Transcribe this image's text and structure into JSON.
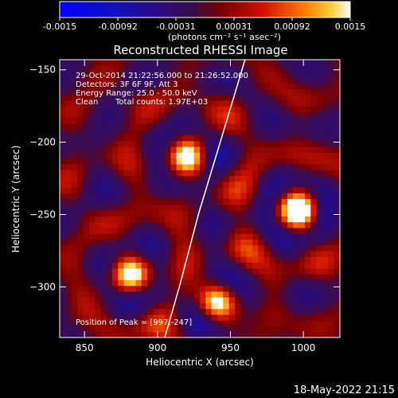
{
  "colorbar": {
    "ticks": [
      "-0.0015",
      "-0.00092",
      "-0.00031",
      "0.00031",
      "0.00092",
      "0.0015"
    ],
    "unit_label": "(photons cm⁻² s⁻¹ asec⁻²)"
  },
  "chart_data": {
    "type": "heatmap",
    "title": "Reconstructed RHESSI Image",
    "xlabel": "Heliocentric X (arcsec)",
    "ylabel": "Heliocentric Y (arcsec)",
    "xlim": [
      833,
      1025
    ],
    "ylim": [
      -335,
      -143
    ],
    "x_ticks": [
      850,
      900,
      950,
      1000
    ],
    "y_ticks": [
      -150,
      -200,
      -250,
      -300
    ],
    "x_tick_labels": [
      "850",
      "900",
      "950",
      "1000"
    ],
    "y_tick_labels": [
      "−150",
      "−200",
      "−250",
      "−300"
    ],
    "value_range": [
      -0.0015,
      0.0015
    ],
    "peaks": [
      {
        "x": 997,
        "y": -247,
        "value": 0.0015
      },
      {
        "x": 882,
        "y": -292,
        "value": 0.0013
      },
      {
        "x": 941,
        "y": -310,
        "value": 0.0012
      },
      {
        "x": 920,
        "y": -210,
        "value": 0.0011
      }
    ],
    "limb": [
      [
        905,
        -335
      ],
      [
        915,
        -300
      ],
      [
        928,
        -250
      ],
      [
        943,
        -200
      ],
      [
        960,
        -143
      ]
    ],
    "annotations": {
      "time": "29-Oct-2014 21:22:56.000 to 21:26:52.000",
      "detectors": "Detectors: 3F 6F 9F, Att 3",
      "energy": "Energy Range: 25.0 - 50.0 keV",
      "method": "Clean",
      "counts": "Total counts: 1.97E+03",
      "peak": "Position of Peak = [997,-247]"
    }
  },
  "footer": {
    "date": "18-May-2022 21:15"
  }
}
